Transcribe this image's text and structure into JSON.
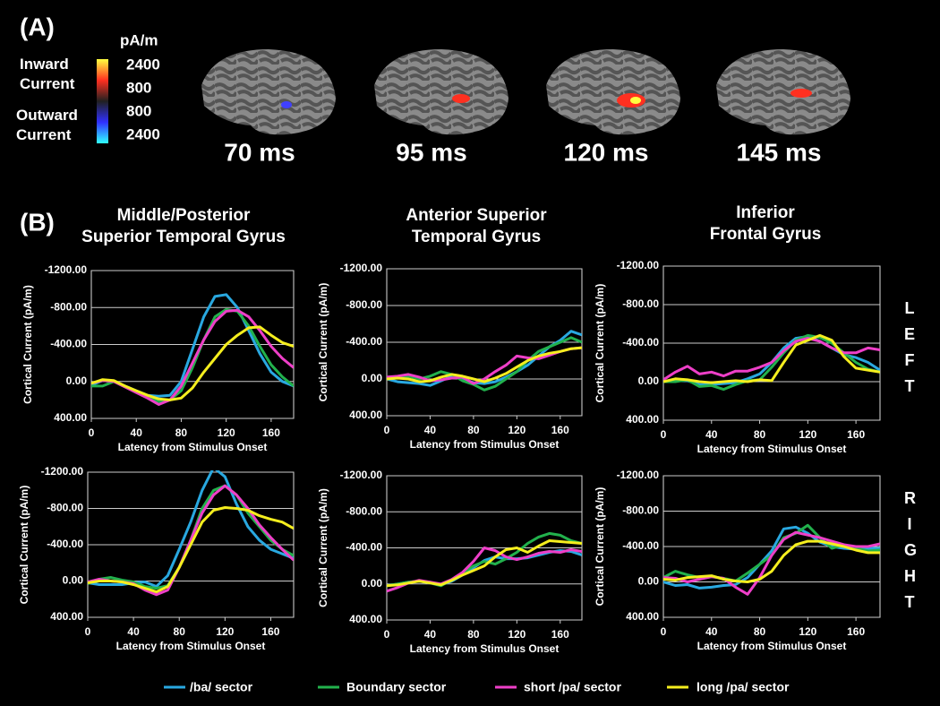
{
  "panel_a": {
    "label": "(A)",
    "unit": "pA/m",
    "inward": "Inward Current",
    "outward": "Outward Current",
    "scale_labels": [
      "2400",
      "800",
      "800",
      "2400"
    ],
    "times": [
      "70 ms",
      "95 ms",
      "120 ms",
      "145 ms"
    ]
  },
  "panel_b": {
    "label": "(B)",
    "columns": [
      [
        "Middle/Posterior",
        "Superior Temporal Gyrus"
      ],
      [
        "Anterior Superior",
        "Temporal Gyrus"
      ],
      [
        "Inferior",
        "Frontal Gyrus"
      ]
    ],
    "rows": [
      "LEFT",
      "RIGHT"
    ]
  },
  "chart_data": [
    {
      "type": "line",
      "xlabel": "Latency from Stimulus Onset",
      "ylabel": "Cortical Current (pA/m)",
      "x": [
        0,
        10,
        20,
        30,
        40,
        50,
        60,
        70,
        80,
        90,
        100,
        110,
        120,
        130,
        140,
        150,
        160,
        170,
        180
      ],
      "xlim": [
        0,
        180
      ],
      "xticks": [
        0,
        40,
        80,
        120,
        160
      ],
      "ylim": [
        400,
        -1200
      ],
      "yticks": [
        {
          "value": -1200,
          "label": "-1200.00"
        },
        {
          "value": -800,
          "label": "-800.00"
        },
        {
          "value": -400,
          "label": "-400.00"
        },
        {
          "value": 0,
          "label": "0.00"
        },
        {
          "value": 400,
          "label": "400.00"
        }
      ],
      "series": [
        {
          "name": "/ba/ sector",
          "color": "#29a8e0",
          "values": [
            40,
            -10,
            0,
            50,
            100,
            150,
            160,
            150,
            0,
            -350,
            -700,
            -920,
            -940,
            -800,
            -550,
            -300,
            -100,
            0,
            50
          ]
        },
        {
          "name": "Boundary sector",
          "color": "#22b14c",
          "values": [
            50,
            50,
            0,
            60,
            110,
            160,
            220,
            200,
            100,
            -150,
            -450,
            -700,
            -780,
            -760,
            -600,
            -380,
            -180,
            -50,
            50
          ]
        },
        {
          "name": "short /pa/ sector",
          "color": "#ee3fc8",
          "values": [
            20,
            -10,
            0,
            60,
            120,
            180,
            250,
            200,
            50,
            -200,
            -450,
            -650,
            -760,
            -770,
            -700,
            -550,
            -380,
            -250,
            -150
          ]
        },
        {
          "name": "long /pa/ sector",
          "color": "#f5ee1e",
          "values": [
            20,
            -20,
            -10,
            50,
            100,
            150,
            190,
            200,
            180,
            70,
            -100,
            -250,
            -400,
            -500,
            -580,
            -590,
            -500,
            -420,
            -380
          ]
        }
      ]
    },
    {
      "type": "line",
      "xlabel": "Latency from Stimulus Onset",
      "ylabel": "Cortical Current (pA/m)",
      "x": [
        0,
        10,
        20,
        30,
        40,
        50,
        60,
        70,
        80,
        90,
        100,
        110,
        120,
        130,
        140,
        150,
        160,
        170,
        180
      ],
      "xlim": [
        0,
        180
      ],
      "xticks": [
        0,
        40,
        80,
        120,
        160
      ],
      "ylim": [
        400,
        -1200
      ],
      "yticks": [
        {
          "value": -1200,
          "label": "-1200.00"
        },
        {
          "value": -800,
          "label": "-800.00"
        },
        {
          "value": -400,
          "label": "-400.00"
        },
        {
          "value": 0,
          "label": "0.00"
        },
        {
          "value": 400,
          "label": "400.00"
        }
      ],
      "series": [
        {
          "values": [
            0,
            30,
            40,
            50,
            70,
            20,
            -30,
            0,
            40,
            50,
            30,
            -20,
            -80,
            -150,
            -250,
            -350,
            -420,
            -520,
            -480
          ]
        },
        {
          "values": [
            -20,
            -20,
            -30,
            0,
            -30,
            -80,
            -50,
            20,
            60,
            120,
            80,
            0,
            -80,
            -200,
            -300,
            -350,
            -400,
            -450,
            -400
          ]
        },
        {
          "values": [
            -20,
            -30,
            -50,
            -20,
            20,
            10,
            -10,
            -20,
            50,
            0,
            -80,
            -150,
            -250,
            -230,
            -220,
            -260,
            -300,
            -330,
            -340
          ]
        },
        {
          "values": [
            0,
            -10,
            0,
            30,
            20,
            -20,
            -50,
            -30,
            0,
            30,
            -10,
            -60,
            -130,
            -200,
            -250,
            -280,
            -300,
            -330,
            -340
          ]
        }
      ]
    },
    {
      "type": "line",
      "xlabel": "Latency from Stimulus Onset",
      "ylabel": "Cortical Current (pA/m)",
      "x": [
        0,
        10,
        20,
        30,
        40,
        50,
        60,
        70,
        80,
        90,
        100,
        110,
        120,
        130,
        140,
        150,
        160,
        170,
        180
      ],
      "xlim": [
        0,
        180
      ],
      "xticks": [
        0,
        40,
        80,
        120,
        160
      ],
      "ylim": [
        400,
        -1200
      ],
      "yticks": [
        {
          "value": -1200,
          "label": "-1200.00"
        },
        {
          "value": -800,
          "label": "-800.00"
        },
        {
          "value": -400,
          "label": "-400.00"
        },
        {
          "value": 0,
          "label": "0.00"
        },
        {
          "value": 400,
          "label": "400.00"
        }
      ],
      "series": [
        {
          "values": [
            0,
            -10,
            -10,
            30,
            30,
            20,
            10,
            -30,
            -80,
            -200,
            -350,
            -450,
            -470,
            -420,
            -350,
            -280,
            -250,
            -200,
            -120
          ]
        },
        {
          "values": [
            0,
            0,
            -20,
            50,
            40,
            80,
            30,
            -10,
            -20,
            -150,
            -300,
            -430,
            -480,
            -460,
            -400,
            -300,
            -200,
            -130,
            -100
          ]
        },
        {
          "values": [
            -20,
            -100,
            -160,
            -80,
            -100,
            -60,
            -110,
            -110,
            -150,
            -200,
            -320,
            -420,
            -450,
            -420,
            -350,
            -300,
            -300,
            -350,
            -330
          ]
        },
        {
          "values": [
            0,
            -30,
            -20,
            0,
            10,
            0,
            -10,
            0,
            -20,
            -10,
            -200,
            -380,
            -430,
            -480,
            -430,
            -260,
            -140,
            -120,
            -100
          ]
        }
      ]
    },
    {
      "type": "line",
      "xlabel": "Latency from Stimulus Onset",
      "ylabel": "Cortical Current (pA/m)",
      "x": [
        0,
        10,
        20,
        30,
        40,
        50,
        60,
        70,
        80,
        90,
        100,
        110,
        120,
        130,
        140,
        150,
        160,
        170,
        180
      ],
      "xlim": [
        0,
        180
      ],
      "xticks": [
        0,
        40,
        80,
        120,
        160
      ],
      "ylim": [
        400,
        -1200
      ],
      "yticks": [
        {
          "value": -1200,
          "label": "-1200.00"
        },
        {
          "value": -800,
          "label": "-800.00"
        },
        {
          "value": -400,
          "label": "-400.00"
        },
        {
          "value": 0,
          "label": "0.00"
        },
        {
          "value": 400,
          "label": "400.00"
        }
      ],
      "series": [
        {
          "values": [
            20,
            40,
            40,
            40,
            20,
            10,
            60,
            -60,
            -350,
            -650,
            -1000,
            -1250,
            -1150,
            -850,
            -600,
            -450,
            -350,
            -300,
            -250
          ]
        },
        {
          "values": [
            30,
            -20,
            -40,
            -10,
            10,
            60,
            80,
            50,
            -150,
            -450,
            -800,
            -1000,
            -1050,
            -950,
            -750,
            -600,
            -450,
            -350,
            -280
          ]
        },
        {
          "values": [
            10,
            -20,
            0,
            10,
            30,
            100,
            150,
            100,
            -150,
            -450,
            -750,
            -950,
            -1050,
            -950,
            -800,
            -620,
            -480,
            -350,
            -230
          ]
        },
        {
          "values": [
            20,
            0,
            0,
            10,
            40,
            80,
            120,
            60,
            -150,
            -400,
            -650,
            -780,
            -810,
            -800,
            -780,
            -720,
            -680,
            -650,
            -580
          ]
        }
      ]
    },
    {
      "type": "line",
      "xlabel": "Latency from Stimulus Onset",
      "ylabel": "Cortical Current (pA/m)",
      "x": [
        0,
        10,
        20,
        30,
        40,
        50,
        60,
        70,
        80,
        90,
        100,
        110,
        120,
        130,
        140,
        150,
        160,
        170,
        180
      ],
      "xlim": [
        0,
        180
      ],
      "xticks": [
        0,
        40,
        80,
        120,
        160
      ],
      "ylim": [
        400,
        -1200
      ],
      "yticks": [
        {
          "value": -1200,
          "label": "-1200.00"
        },
        {
          "value": -800,
          "label": "-800.00"
        },
        {
          "value": -400,
          "label": "-400.00"
        },
        {
          "value": 0,
          "label": "0.00"
        },
        {
          "value": 400,
          "label": "400.00"
        }
      ],
      "series": [
        {
          "values": [
            20,
            0,
            -20,
            -30,
            -20,
            10,
            -30,
            -100,
            -180,
            -260,
            -300,
            -280,
            -280,
            -290,
            -320,
            -350,
            -370,
            -360,
            -320
          ]
        },
        {
          "values": [
            20,
            0,
            -20,
            -30,
            -10,
            20,
            -50,
            -120,
            -200,
            -250,
            -220,
            -280,
            -350,
            -450,
            -520,
            -560,
            -540,
            -480,
            -450
          ]
        },
        {
          "values": [
            80,
            40,
            -10,
            -40,
            -20,
            0,
            -50,
            -130,
            -250,
            -400,
            -370,
            -300,
            -270,
            -300,
            -340,
            -360,
            -350,
            -380,
            -360
          ]
        },
        {
          "values": [
            20,
            10,
            -10,
            -30,
            -10,
            10,
            -40,
            -100,
            -150,
            -200,
            -300,
            -380,
            -400,
            -350,
            -420,
            -480,
            -470,
            -460,
            -450
          ]
        }
      ]
    },
    {
      "type": "line",
      "xlabel": "Latency from Stimulus Onset",
      "ylabel": "Cortical Current (pA/m)",
      "x": [
        0,
        10,
        20,
        30,
        40,
        50,
        60,
        70,
        80,
        90,
        100,
        110,
        120,
        130,
        140,
        150,
        160,
        170,
        180
      ],
      "xlim": [
        0,
        180
      ],
      "xticks": [
        0,
        40,
        80,
        120,
        160
      ],
      "ylim": [
        400,
        -1200
      ],
      "yticks": [
        {
          "value": -1200,
          "label": "-1200.00"
        },
        {
          "value": -800,
          "label": "-800.00"
        },
        {
          "value": -400,
          "label": "-400.00"
        },
        {
          "value": 0,
          "label": "0.00"
        },
        {
          "value": 400,
          "label": "400.00"
        }
      ],
      "series": [
        {
          "values": [
            0,
            40,
            30,
            70,
            60,
            40,
            30,
            -50,
            -200,
            -350,
            -600,
            -620,
            -550,
            -450,
            -400,
            -380,
            -370,
            -380,
            -380
          ]
        },
        {
          "values": [
            -50,
            -120,
            -80,
            -50,
            -60,
            -40,
            -10,
            -100,
            -200,
            -300,
            -500,
            -550,
            -640,
            -500,
            -380,
            -420,
            -380,
            -350,
            -360
          ]
        },
        {
          "values": [
            -50,
            -40,
            0,
            -30,
            -60,
            -40,
            60,
            140,
            -50,
            -300,
            -480,
            -560,
            -530,
            -500,
            -460,
            -420,
            -400,
            -400,
            -430
          ]
        },
        {
          "values": [
            -30,
            -20,
            -50,
            -60,
            -70,
            -30,
            -10,
            0,
            -30,
            -120,
            -300,
            -420,
            -460,
            -460,
            -430,
            -400,
            -360,
            -330,
            -330
          ]
        }
      ]
    }
  ]
}
